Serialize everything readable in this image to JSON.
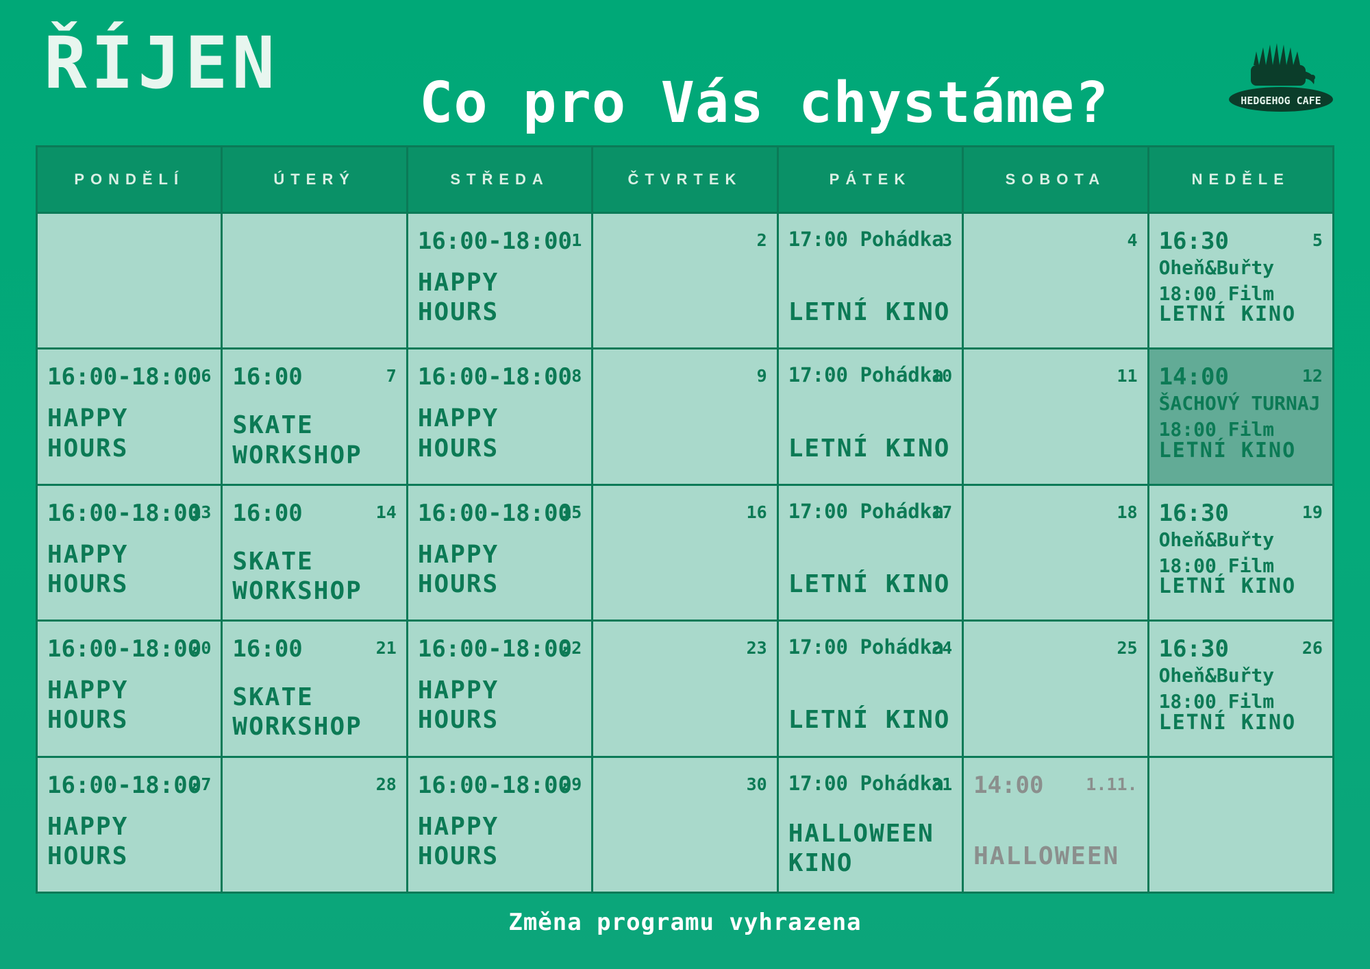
{
  "month": "ŘÍJEN",
  "headline": "Co pro Vás chystáme?",
  "logo_text": "HEDGEHOG CAFE",
  "footer": "Změna programu vyhrazena",
  "days": [
    "PONDĚLÍ",
    "ÚTERÝ",
    "STŘEDA",
    "ČTVRTEK",
    "PÁTEK",
    "SOBOTA",
    "NEDĚLE"
  ],
  "weeks": [
    [
      {
        "num": "",
        "time": "",
        "lines": [],
        "title": ""
      },
      {
        "num": "",
        "time": "",
        "lines": [],
        "title": ""
      },
      {
        "num": "1",
        "time": "16:00-18:00",
        "lines": [],
        "title": "HAPPY HOURS"
      },
      {
        "num": "2",
        "time": "",
        "lines": [],
        "title": ""
      },
      {
        "num": "3",
        "time": "17:00 Pohádka",
        "lines": [],
        "title": "LETNÍ KINO"
      },
      {
        "num": "4",
        "time": "",
        "lines": [],
        "title": ""
      },
      {
        "num": "5",
        "time": "16:30",
        "lines": [
          "Oheň&Buřty",
          "18:00  Film"
        ],
        "title": "LETNÍ KINO"
      }
    ],
    [
      {
        "num": "6",
        "time": "16:00-18:00",
        "lines": [],
        "title": "HAPPY HOURS"
      },
      {
        "num": "7",
        "time": "16:00",
        "lines": [],
        "title": "SKATE WORKSHOP"
      },
      {
        "num": "8",
        "time": "16:00-18:00",
        "lines": [],
        "title": "HAPPY HOURS"
      },
      {
        "num": "9",
        "time": "",
        "lines": [],
        "title": ""
      },
      {
        "num": "10",
        "time": "17:00 Pohádka",
        "lines": [],
        "title": "LETNÍ KINO"
      },
      {
        "num": "11",
        "time": "",
        "lines": [],
        "title": ""
      },
      {
        "num": "12",
        "time": "14:00",
        "lines": [
          "ŠACHOVÝ TURNAJ",
          "18:00 Film"
        ],
        "title": "LETNÍ KINO"
      }
    ],
    [
      {
        "num": "13",
        "time": "16:00-18:00",
        "lines": [],
        "title": "HAPPY HOURS"
      },
      {
        "num": "14",
        "time": "16:00",
        "lines": [],
        "title": "SKATE WORKSHOP"
      },
      {
        "num": "15",
        "time": "16:00-18:00",
        "lines": [],
        "title": "HAPPY HOURS"
      },
      {
        "num": "16",
        "time": "",
        "lines": [],
        "title": ""
      },
      {
        "num": "17",
        "time": "17:00 Pohádka",
        "lines": [],
        "title": "LETNÍ KINO"
      },
      {
        "num": "18",
        "time": "",
        "lines": [],
        "title": ""
      },
      {
        "num": "19",
        "time": "16:30",
        "lines": [
          "Oheň&Buřty",
          "18:00  Film"
        ],
        "title": "LETNÍ KINO"
      }
    ],
    [
      {
        "num": "20",
        "time": "16:00-18:00",
        "lines": [],
        "title": "HAPPY HOURS"
      },
      {
        "num": "21",
        "time": "16:00",
        "lines": [],
        "title": "SKATE WORKSHOP"
      },
      {
        "num": "22",
        "time": "16:00-18:00",
        "lines": [],
        "title": "HAPPY HOURS"
      },
      {
        "num": "23",
        "time": "",
        "lines": [],
        "title": ""
      },
      {
        "num": "24",
        "time": "17:00 Pohádka",
        "lines": [],
        "title": "LETNÍ KINO"
      },
      {
        "num": "25",
        "time": "",
        "lines": [],
        "title": ""
      },
      {
        "num": "26",
        "time": "16:30",
        "lines": [
          "Oheň&Buřty",
          "18:00 Film"
        ],
        "title": "LETNÍ KINO"
      }
    ],
    [
      {
        "num": "27",
        "time": "16:00-18:00",
        "lines": [],
        "title": "HAPPY HOURS"
      },
      {
        "num": "28",
        "time": "",
        "lines": [],
        "title": ""
      },
      {
        "num": "29",
        "time": "16:00-18:00",
        "lines": [],
        "title": "HAPPY HOURS"
      },
      {
        "num": "30",
        "time": "",
        "lines": [],
        "title": ""
      },
      {
        "num": "31",
        "time": "17:00 Pohádka",
        "lines": [],
        "title": "HALLOWEEN KINO"
      },
      {
        "num": "1.11.",
        "time": "14:00",
        "lines": [],
        "title": "HALLOWEEN",
        "muted": true
      },
      {
        "num": "",
        "time": "",
        "lines": [],
        "title": ""
      }
    ]
  ],
  "highlight_cell": {
    "week": 1,
    "day": 6
  },
  "colors": {
    "background": "#00a877",
    "cell": "#a9d9cb",
    "header": "#0a9167",
    "text": "#0c7a55",
    "highlight": "#62ab96",
    "muted_text": "#8b8f8d"
  }
}
